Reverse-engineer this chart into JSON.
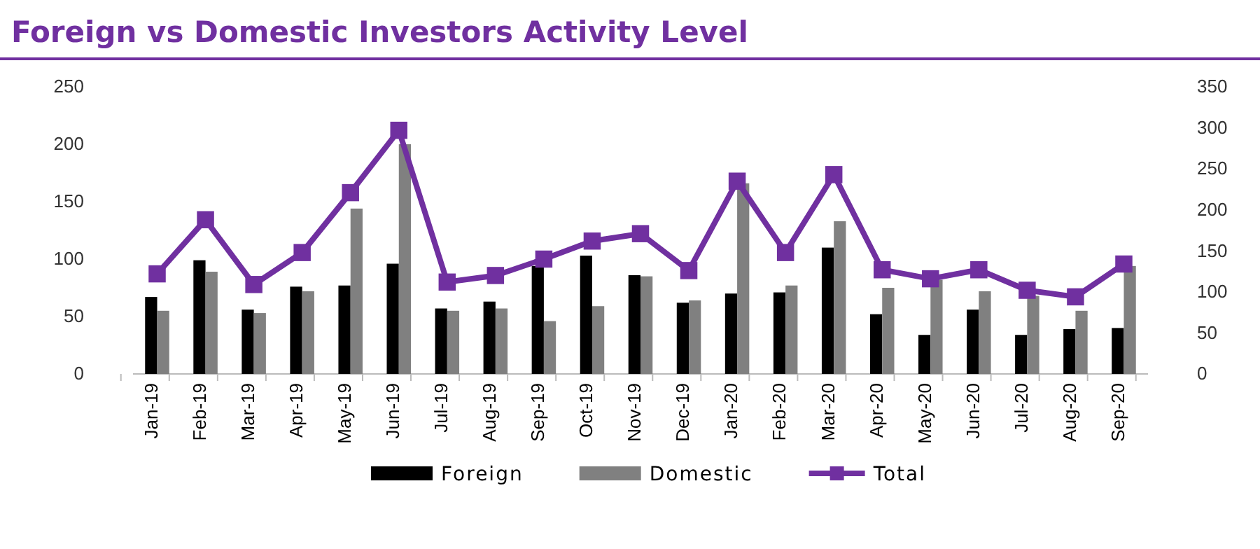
{
  "chart_data": {
    "type": "bar",
    "title": "Foreign vs Domestic Investors Activity Level",
    "categories": [
      "Jan-19",
      "Feb-19",
      "Mar-19",
      "Apr-19",
      "May-19",
      "Jun-19",
      "Jul-19",
      "Aug-19",
      "Sep-19",
      "Oct-19",
      "Nov-19",
      "Dec-19",
      "Jan-20",
      "Feb-20",
      "Mar-20",
      "Apr-20",
      "May-20",
      "Jun-20",
      "Jul-20",
      "Aug-20",
      "Sep-20"
    ],
    "series": [
      {
        "name": "Foreign",
        "color": "#000000",
        "values": [
          67,
          99,
          56,
          76,
          77,
          96,
          57,
          63,
          94,
          103,
          86,
          62,
          70,
          71,
          110,
          52,
          34,
          56,
          34,
          39,
          40
        ]
      },
      {
        "name": "Domestic",
        "color": "#808080",
        "values": [
          55,
          89,
          53,
          72,
          144,
          200,
          55,
          57,
          46,
          59,
          85,
          64,
          166,
          77,
          133,
          75,
          82,
          72,
          68,
          55,
          94
        ]
      },
      {
        "name": "Total",
        "type": "line",
        "axis": "y2",
        "color": "#7030a0",
        "marker": "square",
        "values": [
          122,
          188,
          109,
          148,
          221,
          297,
          112,
          120,
          140,
          162,
          171,
          126,
          235,
          148,
          243,
          127,
          116,
          127,
          102,
          94,
          134
        ]
      }
    ],
    "ylim": [
      0,
      250
    ],
    "yticks": [
      0,
      50,
      100,
      150,
      200,
      250
    ],
    "y2lim": [
      0,
      350
    ],
    "y2ticks": [
      0,
      50,
      100,
      150,
      200,
      250,
      300,
      350
    ],
    "grid": false,
    "legend": "bottom"
  }
}
